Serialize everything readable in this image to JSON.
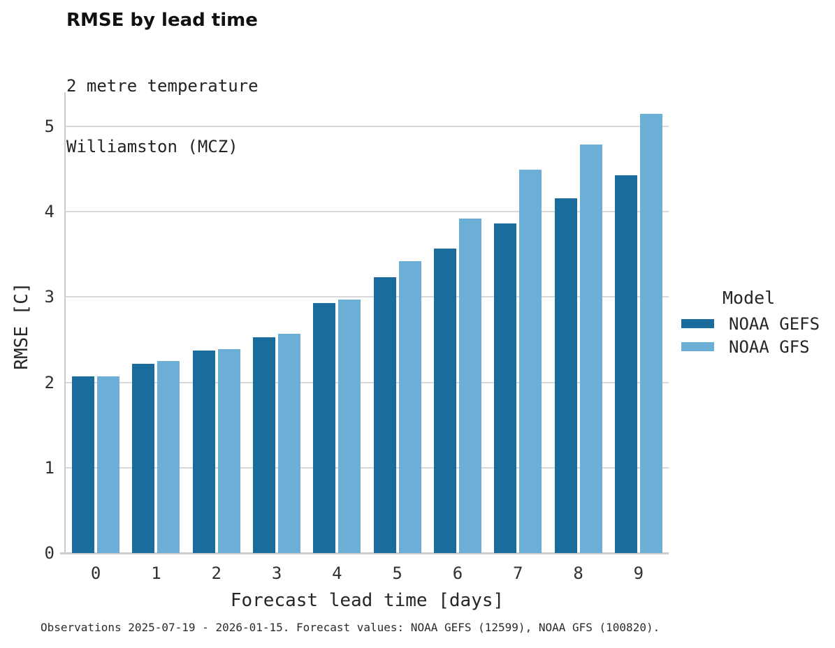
{
  "title": "RMSE by lead time",
  "subtitle_line1": "2 metre temperature",
  "subtitle_line2": "Williamston (MCZ)",
  "footer": "Observations 2025-07-19 - 2026-01-15. Forecast values: NOAA GEFS (12599), NOAA GFS (100820).",
  "legend": {
    "title": "Model",
    "items": [
      {
        "label": "NOAA GEFS",
        "color": "#1a6c9c"
      },
      {
        "label": "NOAA GFS",
        "color": "#6bafd7"
      }
    ]
  },
  "colors": {
    "gefs_dark_blue": "#1a6c9c",
    "gfs_light_blue": "#6bafd7",
    "gridline_gray": "#d9d9d9"
  },
  "chart_data": {
    "type": "bar",
    "title": "RMSE by lead time",
    "subtitle": [
      "2 metre temperature",
      "Williamston (MCZ)"
    ],
    "categories": [
      "0",
      "1",
      "2",
      "3",
      "4",
      "5",
      "6",
      "7",
      "8",
      "9"
    ],
    "series": [
      {
        "name": "NOAA GEFS",
        "color": "#1a6c9c",
        "values": [
          2.07,
          2.22,
          2.37,
          2.53,
          2.93,
          3.23,
          3.57,
          3.86,
          4.16,
          4.43
        ]
      },
      {
        "name": "NOAA GFS",
        "color": "#6bafd7",
        "values": [
          2.07,
          2.25,
          2.39,
          2.57,
          2.97,
          3.42,
          3.92,
          4.49,
          4.79,
          5.15
        ]
      }
    ],
    "xlabel": "Forecast lead time [days]",
    "ylabel": "RMSE [C]",
    "ylim": [
      0,
      5.4
    ],
    "yticks": [
      0,
      1,
      2,
      3,
      4,
      5
    ],
    "grid": true,
    "legend_position": "right",
    "legend_title": "Model"
  }
}
